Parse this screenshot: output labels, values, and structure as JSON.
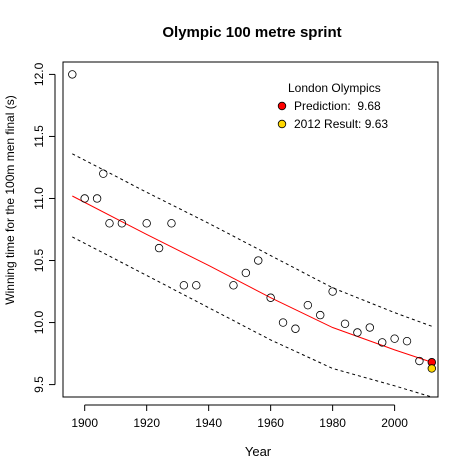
{
  "chart_data": {
    "type": "scatter",
    "title": "Olympic 100 metre sprint",
    "xlabel": "Year",
    "ylabel": "Winning time for the 100m men final (s)",
    "xlim": [
      1893,
      2014
    ],
    "ylim": [
      9.4,
      12.1
    ],
    "x_ticks": [
      1900,
      1920,
      1940,
      1960,
      1980,
      2000
    ],
    "y_ticks": [
      9.5,
      10.0,
      10.5,
      11.0,
      11.5,
      12.0
    ],
    "x_tick_labels": [
      "1900",
      "1920",
      "1940",
      "1960",
      "1980",
      "2000"
    ],
    "y_tick_labels": [
      "9.5",
      "10.0",
      "10.5",
      "11.0",
      "11.5",
      "12.0"
    ],
    "series": [
      {
        "type": "scatter",
        "color": "#000000",
        "points": [
          {
            "x": 1896,
            "y": 12.0
          },
          {
            "x": 1900,
            "y": 11.0
          },
          {
            "x": 1904,
            "y": 11.0
          },
          {
            "x": 1906,
            "y": 11.2
          },
          {
            "x": 1908,
            "y": 10.8
          },
          {
            "x": 1912,
            "y": 10.8
          },
          {
            "x": 1920,
            "y": 10.8
          },
          {
            "x": 1924,
            "y": 10.6
          },
          {
            "x": 1928,
            "y": 10.8
          },
          {
            "x": 1932,
            "y": 10.3
          },
          {
            "x": 1936,
            "y": 10.3
          },
          {
            "x": 1948,
            "y": 10.3
          },
          {
            "x": 1952,
            "y": 10.4
          },
          {
            "x": 1956,
            "y": 10.5
          },
          {
            "x": 1960,
            "y": 10.2
          },
          {
            "x": 1964,
            "y": 10.0
          },
          {
            "x": 1968,
            "y": 9.95
          },
          {
            "x": 1972,
            "y": 10.14
          },
          {
            "x": 1976,
            "y": 10.06
          },
          {
            "x": 1980,
            "y": 10.25
          },
          {
            "x": 1984,
            "y": 9.99
          },
          {
            "x": 1988,
            "y": 9.92
          },
          {
            "x": 1992,
            "y": 9.96
          },
          {
            "x": 1996,
            "y": 9.84
          },
          {
            "x": 2000,
            "y": 9.87
          },
          {
            "x": 2004,
            "y": 9.85
          },
          {
            "x": 2008,
            "y": 9.69
          }
        ]
      },
      {
        "type": "line",
        "color": "#ff0000",
        "style": "solid",
        "points": [
          {
            "x": 1896,
            "y": 11.02
          },
          {
            "x": 1920,
            "y": 10.71
          },
          {
            "x": 1940,
            "y": 10.46
          },
          {
            "x": 1960,
            "y": 10.2
          },
          {
            "x": 1980,
            "y": 9.96
          },
          {
            "x": 2000,
            "y": 9.78
          },
          {
            "x": 2012,
            "y": 9.68
          }
        ]
      },
      {
        "type": "line",
        "color": "#000000",
        "style": "dashed",
        "points": [
          {
            "x": 1896,
            "y": 11.36
          },
          {
            "x": 1920,
            "y": 11.05
          },
          {
            "x": 1940,
            "y": 10.8
          },
          {
            "x": 1960,
            "y": 10.54
          },
          {
            "x": 1980,
            "y": 10.28
          },
          {
            "x": 2000,
            "y": 10.08
          },
          {
            "x": 2012,
            "y": 9.97
          }
        ]
      },
      {
        "type": "line",
        "color": "#000000",
        "style": "dashed",
        "points": [
          {
            "x": 1896,
            "y": 10.69
          },
          {
            "x": 1920,
            "y": 10.38
          },
          {
            "x": 1940,
            "y": 10.12
          },
          {
            "x": 1960,
            "y": 9.86
          },
          {
            "x": 1980,
            "y": 9.63
          },
          {
            "x": 2000,
            "y": 9.49
          },
          {
            "x": 2012,
            "y": 9.4
          }
        ]
      },
      {
        "type": "scatter",
        "name": "Prediction:  9.68",
        "color": "#ff0000",
        "points": [
          {
            "x": 2012,
            "y": 9.68
          }
        ]
      },
      {
        "type": "scatter",
        "name": "2012 Result: 9.63",
        "color": "#ffd700",
        "points": [
          {
            "x": 2012,
            "y": 9.63
          }
        ]
      }
    ],
    "legend": {
      "title": "London Olympics",
      "placement": "top-right",
      "entries": [
        {
          "label": "Prediction:  9.68",
          "color": "#ff0000"
        },
        {
          "label": "2012 Result: 9.63",
          "color": "#ffd700"
        }
      ]
    },
    "grid": false
  }
}
